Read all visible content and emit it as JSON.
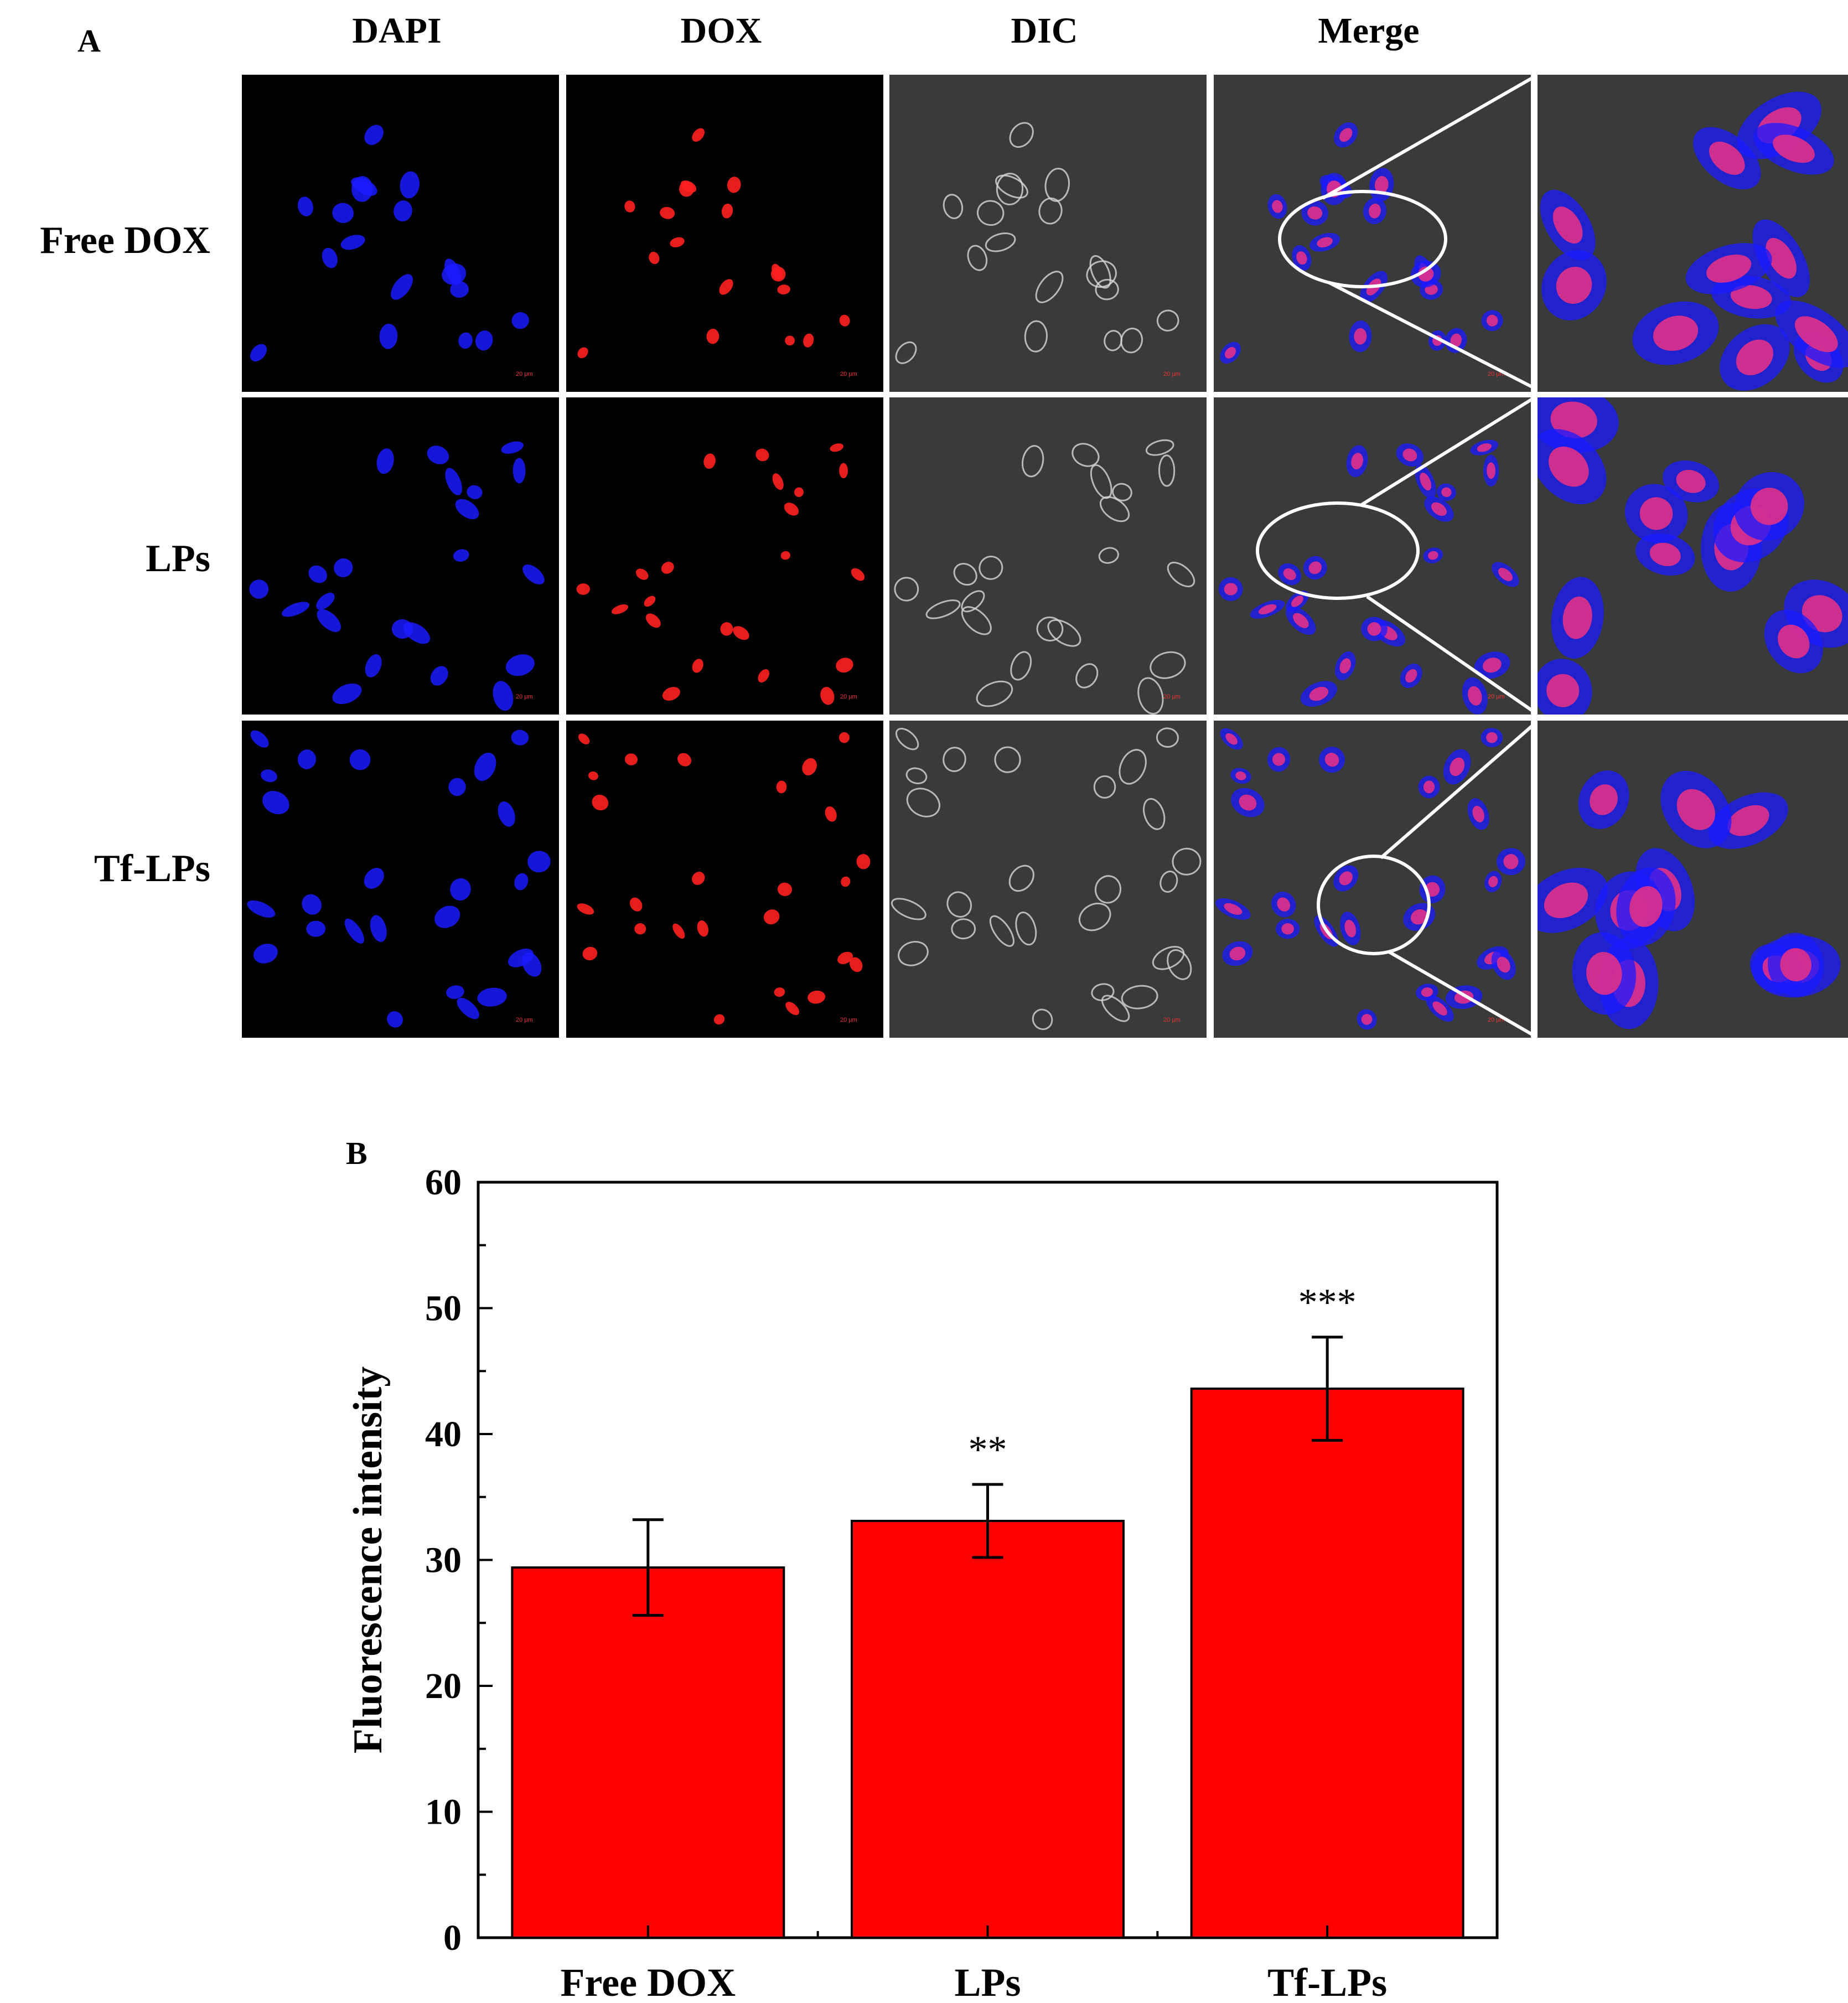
{
  "panel_a": {
    "letter": "A",
    "columns": [
      "DAPI",
      "DOX",
      "DIC",
      "Merge"
    ],
    "rows": [
      "Free DOX",
      "LPs",
      "Tf-LPs"
    ],
    "scale_bar": "20 μm",
    "channel_colors": {
      "dapi": "#1a1aff",
      "dox": "#ff2020",
      "dic": "#d8d8d8",
      "merge_nucleus": "#e0308a"
    }
  },
  "panel_b": {
    "letter": "B"
  },
  "chart_data": {
    "type": "bar",
    "categories": [
      "Free DOX",
      "LPs",
      "Tf-LPs"
    ],
    "values": [
      29.4,
      33.1,
      43.6
    ],
    "errors": [
      3.8,
      2.9,
      4.1
    ],
    "significance": [
      "",
      "**",
      "***"
    ],
    "title": "",
    "xlabel": "",
    "ylabel": "Fluorescence intensity",
    "ylim": [
      0,
      60
    ],
    "yticks": [
      0,
      10,
      20,
      30,
      40,
      50,
      60
    ],
    "bar_color": "#ff0000",
    "grid": false
  }
}
